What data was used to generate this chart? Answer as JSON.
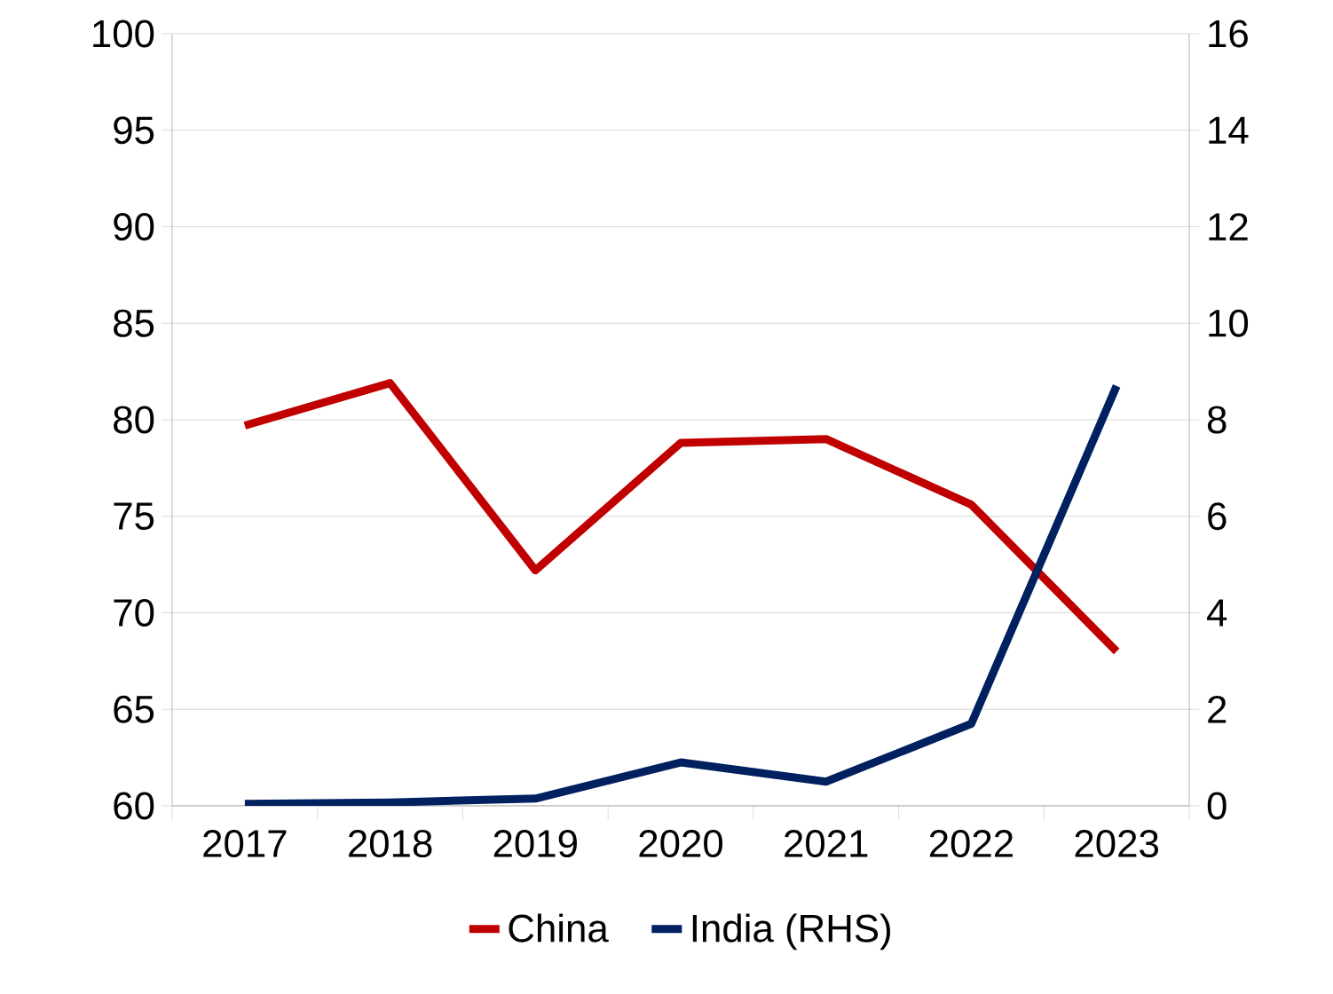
{
  "chart_data": {
    "type": "line",
    "categories": [
      "2017",
      "2018",
      "2019",
      "2020",
      "2021",
      "2022",
      "2023"
    ],
    "series": [
      {
        "name": "China",
        "color": "#c00000",
        "values": [
          79.7,
          81.9,
          72.2,
          78.8,
          79.0,
          75.6,
          68.0
        ]
      },
      {
        "name": "India (RHS)",
        "color": "#002060",
        "values": [
          0.04,
          0.07,
          0.15,
          0.9,
          0.5,
          1.7,
          8.7
        ],
        "axis": "y2"
      }
    ],
    "ylim": [
      60,
      100
    ],
    "yticks": [
      60,
      65,
      70,
      75,
      80,
      85,
      90,
      95,
      100
    ],
    "y2lim": [
      0,
      16
    ],
    "y2ticks": [
      0,
      2,
      4,
      6,
      8,
      10,
      12,
      14,
      16
    ],
    "grid": "y",
    "legend": "bottom",
    "marker": "none",
    "line_style": "solid"
  }
}
